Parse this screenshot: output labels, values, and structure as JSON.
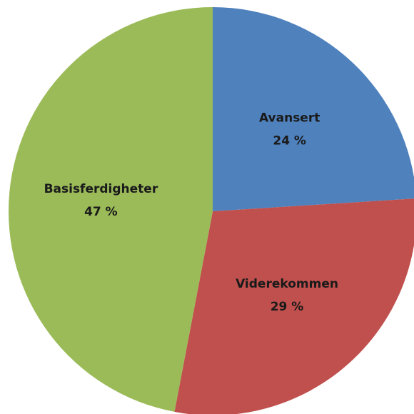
{
  "chart_data": {
    "type": "pie",
    "categories": [
      "Avansert",
      "Viderekommen",
      "Basisferdigheter"
    ],
    "values": [
      24,
      29,
      47
    ],
    "value_labels": [
      "24 %",
      "29 %",
      "47 %"
    ],
    "colors": [
      "#4f81bd",
      "#c0504d",
      "#9bbb59"
    ]
  }
}
